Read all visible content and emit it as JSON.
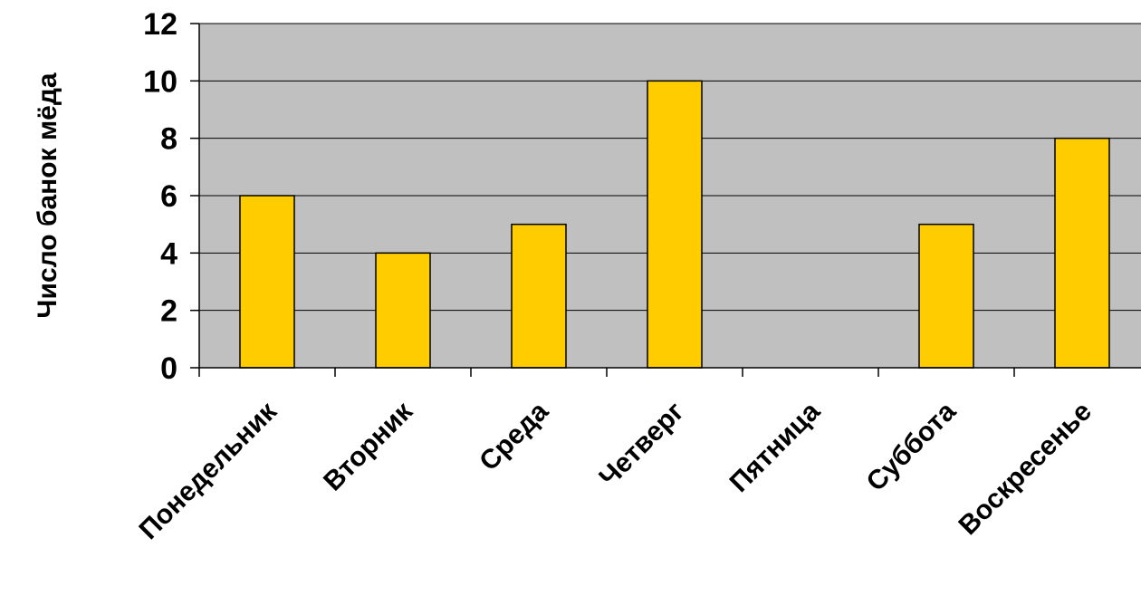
{
  "chart_data": {
    "type": "bar",
    "title": "",
    "xlabel": "",
    "ylabel": "Число банок мёда",
    "categories": [
      "Понедельник",
      "Вторник",
      "Среда",
      "Четверг",
      "Пятница",
      "Суббота",
      "Воскресенье"
    ],
    "values": [
      6,
      4,
      5,
      10,
      0,
      5,
      8
    ],
    "ylim": [
      0,
      12
    ],
    "yticks": [
      "0",
      "2",
      "4",
      "6",
      "8",
      "10",
      "12"
    ],
    "grid": true,
    "colors": {
      "plot_background": "#c0c0c0",
      "bar_fill": "#ffcc00",
      "bar_stroke": "#000000",
      "grid": "#000000",
      "text": "#000000"
    }
  }
}
